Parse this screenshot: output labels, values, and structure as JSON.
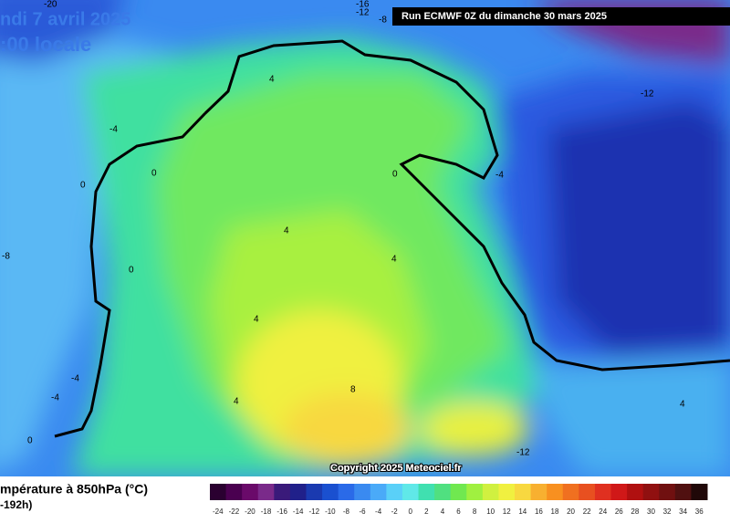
{
  "header": {
    "date": "ndi 7 avril 2025",
    "time": ":00 locale",
    "run": "Run ECMWF 0Z du dimanche 30 mars 2025"
  },
  "map": {
    "copyright": "Copyright 2025 Meteociel.fr",
    "contour_labels": [
      -20,
      -16,
      -12,
      -8,
      4,
      -12,
      -4,
      0,
      0,
      0,
      -4,
      4,
      -8,
      4,
      0,
      4,
      -4,
      -4,
      4,
      8,
      4,
      0,
      -12
    ]
  },
  "legend": {
    "title": "mpérature à 850hPa (°C)",
    "subtitle": "-192h)",
    "scale": [
      {
        "value": -24,
        "color": "#2a0030"
      },
      {
        "value": -22,
        "color": "#4a0050"
      },
      {
        "value": -20,
        "color": "#6a0a6a"
      },
      {
        "value": -18,
        "color": "#7a2a8a"
      },
      {
        "value": -16,
        "color": "#3a1a7a"
      },
      {
        "value": -14,
        "color": "#20208a"
      },
      {
        "value": -12,
        "color": "#1a3ab0"
      },
      {
        "value": -10,
        "color": "#1a50d0"
      },
      {
        "value": -8,
        "color": "#2a6ae8"
      },
      {
        "value": -6,
        "color": "#3a8af0"
      },
      {
        "value": -4,
        "color": "#4aaaf8"
      },
      {
        "value": -2,
        "color": "#5ad0f8"
      },
      {
        "value": 0,
        "color": "#60e8e8"
      },
      {
        "value": 2,
        "color": "#40e0b0"
      },
      {
        "value": 4,
        "color": "#50e080"
      },
      {
        "value": 6,
        "color": "#70e850"
      },
      {
        "value": 8,
        "color": "#a0f040"
      },
      {
        "value": 10,
        "color": "#d0f040"
      },
      {
        "value": 12,
        "color": "#f0f040"
      },
      {
        "value": 14,
        "color": "#f8d840"
      },
      {
        "value": 16,
        "color": "#f8b030"
      },
      {
        "value": 18,
        "color": "#f89020"
      },
      {
        "value": 20,
        "color": "#f07020"
      },
      {
        "value": 22,
        "color": "#e85020"
      },
      {
        "value": 24,
        "color": "#e03020"
      },
      {
        "value": 26,
        "color": "#d01818"
      },
      {
        "value": 28,
        "color": "#b01010"
      },
      {
        "value": 30,
        "color": "#901010"
      },
      {
        "value": 32,
        "color": "#701010"
      },
      {
        "value": 34,
        "color": "#501010"
      },
      {
        "value": 36,
        "color": "#200808"
      }
    ]
  }
}
